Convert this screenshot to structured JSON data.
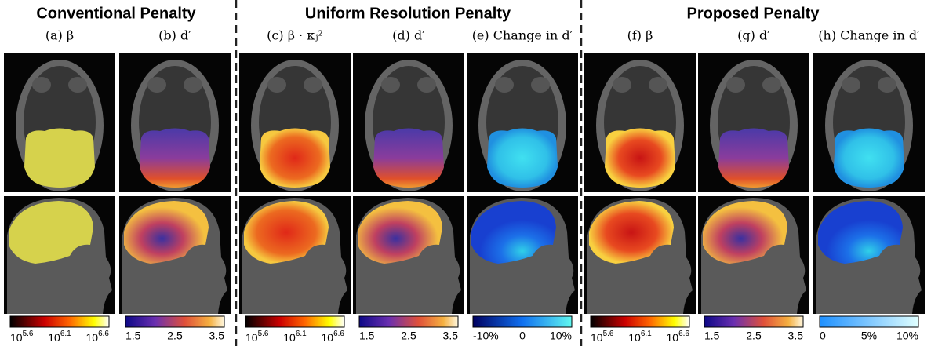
{
  "titles": [
    "Conventional Penalty",
    "Uniform Resolution Penalty",
    "Proposed Penalty"
  ],
  "panels": [
    {
      "label": "(a) β"
    },
    {
      "label": "(b) d′"
    },
    {
      "label": "(c) β · κⱼ²"
    },
    {
      "label": "(d) d′"
    },
    {
      "label": "(e) Change in d′"
    },
    {
      "label": "(f) β"
    },
    {
      "label": "(g) d′"
    },
    {
      "label": "(h) Change in d′"
    }
  ],
  "colorbars": [
    {
      "ticks": [
        {
          "base": "10",
          "exp": "5.6"
        },
        {
          "base": "10",
          "exp": "6.1"
        },
        {
          "base": "10",
          "exp": "6.6"
        }
      ]
    },
    {
      "ticks": [
        "1.5",
        "2.5",
        "3.5"
      ]
    },
    {
      "ticks": [
        {
          "base": "10",
          "exp": "5.6"
        },
        {
          "base": "10",
          "exp": "6.1"
        },
        {
          "base": "10",
          "exp": "6.6"
        }
      ]
    },
    {
      "ticks": [
        "1.5",
        "2.5",
        "3.5"
      ]
    },
    {
      "ticks": [
        "-10%",
        "0",
        "10%"
      ]
    },
    {
      "ticks": [
        {
          "base": "10",
          "exp": "5.6"
        },
        {
          "base": "10",
          "exp": "6.1"
        },
        {
          "base": "10",
          "exp": "6.6"
        }
      ]
    },
    {
      "ticks": [
        "1.5",
        "2.5",
        "3.5"
      ]
    },
    {
      "ticks": [
        "0",
        "5%",
        "10%"
      ]
    }
  ]
}
